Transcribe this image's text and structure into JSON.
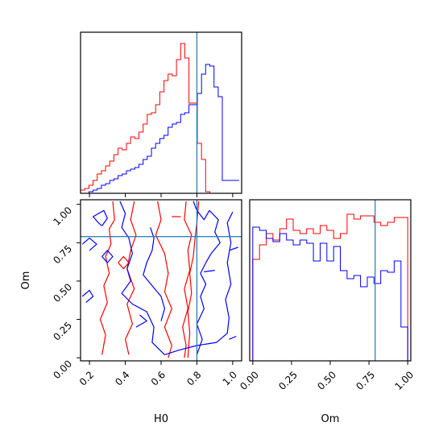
{
  "chart_data": {
    "type": "corner",
    "parameters": [
      "H0",
      "Om"
    ],
    "truth": {
      "H0": 0.8,
      "Om": 0.79
    },
    "colors": {
      "sample_a": "#ff0000",
      "sample_b": "#0000ff",
      "truth": "#1f77b4"
    },
    "panels": [
      {
        "id": "h0-histogram",
        "type": "step-histogram",
        "x_range": [
          0.15,
          1.05
        ],
        "y_range": [
          0,
          1.0
        ],
        "bins": [
          0.15,
          0.1733,
          0.1966,
          0.2199,
          0.2432,
          0.2665,
          0.2898,
          0.3131,
          0.3364,
          0.3597,
          0.383,
          0.4063,
          0.4296,
          0.4529,
          0.4762,
          0.4995,
          0.5228,
          0.5461,
          0.5694,
          0.5927,
          0.616,
          0.6393,
          0.6626,
          0.6859,
          0.7092,
          0.7325,
          0.7558,
          0.7791,
          0.8024,
          0.8257,
          0.849,
          0.8723,
          0.8956,
          0.9189,
          0.9422,
          0.9655,
          0.9888,
          1.0121,
          1.0354
        ],
        "series": [
          {
            "name": "",
            "color": "#ff0000",
            "values": [
              0.02,
              0.03,
              0.05,
              0.08,
              0.12,
              0.14,
              0.17,
              0.2,
              0.24,
              0.28,
              0.27,
              0.31,
              0.35,
              0.34,
              0.38,
              0.43,
              0.49,
              0.5,
              0.55,
              0.63,
              0.7,
              0.74,
              0.73,
              0.83,
              0.93,
              0.84,
              0.56,
              0.56,
              0.31,
              0.21,
              0.01,
              0.0,
              0.0,
              0.0,
              0.0,
              0.0,
              0.0,
              0.0
            ]
          },
          {
            "name": "",
            "color": "#0000ff",
            "values": [
              0.0,
              0.0,
              0.01,
              0.02,
              0.03,
              0.05,
              0.06,
              0.08,
              0.09,
              0.11,
              0.12,
              0.14,
              0.15,
              0.16,
              0.18,
              0.21,
              0.23,
              0.28,
              0.31,
              0.34,
              0.36,
              0.41,
              0.43,
              0.44,
              0.49,
              0.5,
              0.55,
              0.55,
              0.62,
              0.74,
              0.8,
              0.79,
              0.66,
              0.6,
              0.08,
              0.08,
              0.08,
              0.08
            ]
          }
        ],
        "xticks": [
          0.2,
          0.4,
          0.6,
          0.8,
          1.0
        ]
      },
      {
        "id": "om-histogram",
        "type": "step-histogram",
        "x_range": [
          -0.02,
          1.02
        ],
        "y_range": [
          0,
          1.0
        ],
        "bins": [
          0.0,
          0.0435,
          0.087,
          0.1304,
          0.1739,
          0.2174,
          0.2609,
          0.3043,
          0.3478,
          0.3913,
          0.4348,
          0.4783,
          0.5217,
          0.5652,
          0.6087,
          0.6522,
          0.6957,
          0.7391,
          0.7826,
          0.8261,
          0.8696,
          0.913,
          0.9565,
          1.0
        ],
        "series": [
          {
            "name": "",
            "color": "#ff0000",
            "values": [
              0.63,
              0.72,
              0.79,
              0.75,
              0.82,
              0.88,
              0.81,
              0.79,
              0.82,
              0.79,
              0.84,
              0.81,
              0.76,
              0.79,
              0.91,
              0.88,
              0.9,
              0.9,
              0.86,
              0.84,
              0.86,
              0.89,
              0.89
            ]
          },
          {
            "name": "",
            "color": "#0000ff",
            "values": [
              0.83,
              0.81,
              0.76,
              0.74,
              0.79,
              0.75,
              0.72,
              0.75,
              0.73,
              0.62,
              0.73,
              0.62,
              0.71,
              0.56,
              0.51,
              0.53,
              0.46,
              0.52,
              0.48,
              0.56,
              0.55,
              0.62,
              0.21
            ]
          }
        ],
        "xticks": [
          0.0,
          0.25,
          0.5,
          0.75,
          1.0
        ],
        "xticklabels": [
          "0.00",
          "0.25",
          "0.50",
          "0.75",
          "1.00"
        ]
      },
      {
        "id": "h0-om-contour",
        "type": "contour",
        "x_range": [
          0.15,
          1.05
        ],
        "y_range": [
          -0.02,
          1.03
        ],
        "xticks": [
          0.2,
          0.4,
          0.6,
          0.8,
          1.0
        ],
        "xticklabels": [
          "0.2",
          "0.4",
          "0.6",
          "0.8",
          "1.0"
        ],
        "yticks": [
          0.0,
          0.25,
          0.5,
          0.75,
          1.0
        ],
        "yticklabels": [
          "0.00",
          "0.25",
          "0.50",
          "0.75",
          "1.00"
        ],
        "xlabel": "H0",
        "ylabel": "Om",
        "contours": [
          {
            "color": "#ff0000",
            "points": [
              [
                0.33,
                1.02
              ],
              [
                0.34,
                0.9
              ],
              [
                0.31,
                0.84
              ],
              [
                0.32,
                0.74
              ],
              [
                0.29,
                0.66
              ],
              [
                0.31,
                0.55
              ],
              [
                0.28,
                0.47
              ],
              [
                0.3,
                0.36
              ],
              [
                0.26,
                0.25
              ],
              [
                0.29,
                0.15
              ],
              [
                0.27,
                0.02
              ]
            ]
          },
          {
            "color": "#ff0000",
            "points": [
              [
                0.45,
                1.02
              ],
              [
                0.43,
                0.9
              ],
              [
                0.46,
                0.8
              ],
              [
                0.43,
                0.7
              ],
              [
                0.41,
                0.58
              ],
              [
                0.45,
                0.45
              ],
              [
                0.41,
                0.35
              ],
              [
                0.44,
                0.22
              ],
              [
                0.4,
                0.12
              ],
              [
                0.42,
                0.02
              ]
            ]
          },
          {
            "color": "#ff0000",
            "points": [
              [
                0.58,
                1.02
              ],
              [
                0.6,
                0.9
              ],
              [
                0.57,
                0.8
              ],
              [
                0.62,
                0.68
              ],
              [
                0.64,
                0.55
              ],
              [
                0.62,
                0.43
              ],
              [
                0.66,
                0.32
              ],
              [
                0.62,
                0.2
              ],
              [
                0.66,
                0.08
              ],
              [
                0.64,
                0.0
              ]
            ]
          },
          {
            "color": "#ff0000",
            "points": [
              [
                0.74,
                1.02
              ],
              [
                0.73,
                0.9
              ],
              [
                0.77,
                0.8
              ],
              [
                0.75,
                0.7
              ],
              [
                0.76,
                0.57
              ],
              [
                0.73,
                0.45
              ],
              [
                0.75,
                0.32
              ],
              [
                0.72,
                0.2
              ],
              [
                0.74,
                0.08
              ],
              [
                0.73,
                0.0
              ]
            ]
          },
          {
            "color": "#ff0000",
            "points": [
              [
                0.81,
                1.02
              ],
              [
                0.8,
                0.88
              ],
              [
                0.79,
                0.78
              ],
              [
                0.78,
                0.66
              ],
              [
                0.76,
                0.55
              ],
              [
                0.77,
                0.42
              ],
              [
                0.75,
                0.3
              ],
              [
                0.76,
                0.16
              ],
              [
                0.75,
                0.0
              ]
            ]
          },
          {
            "color": "#ff0000",
            "points": [
              [
                0.36,
                0.62
              ],
              [
                0.39,
                0.66
              ],
              [
                0.42,
                0.62
              ],
              [
                0.39,
                0.58
              ],
              [
                0.36,
                0.62
              ]
            ]
          },
          {
            "color": "#ff0000",
            "points": [
              [
                0.66,
                0.92
              ],
              [
                0.71,
                0.92
              ]
            ]
          },
          {
            "color": "#0000ff",
            "points": [
              [
                0.37,
                1.02
              ],
              [
                0.4,
                0.94
              ],
              [
                0.38,
                0.85
              ],
              [
                0.42,
                0.78
              ],
              [
                0.44,
                0.68
              ],
              [
                0.41,
                0.58
              ],
              [
                0.43,
                0.5
              ],
              [
                0.38,
                0.42
              ],
              [
                0.44,
                0.35
              ],
              [
                0.52,
                0.3
              ],
              [
                0.56,
                0.2
              ],
              [
                0.55,
                0.1
              ],
              [
                0.62,
                0.02
              ]
            ]
          },
          {
            "color": "#0000ff",
            "points": [
              [
                0.62,
                0.02
              ],
              [
                0.7,
                0.05
              ],
              [
                0.8,
                0.08
              ],
              [
                0.91,
                0.1
              ],
              [
                0.97,
                0.16
              ],
              [
                0.98,
                0.26
              ],
              [
                0.96,
                0.38
              ],
              [
                0.99,
                0.48
              ],
              [
                0.97,
                0.62
              ],
              [
                0.99,
                0.75
              ],
              [
                0.97,
                0.88
              ],
              [
                1.0,
                0.95
              ]
            ]
          },
          {
            "color": "#0000ff",
            "points": [
              [
                0.78,
                1.02
              ],
              [
                0.8,
                0.96
              ],
              [
                0.84,
                0.9
              ],
              [
                0.87,
                0.96
              ],
              [
                0.92,
                0.9
              ],
              [
                0.9,
                0.82
              ],
              [
                0.93,
                0.75
              ],
              [
                0.88,
                0.68
              ],
              [
                0.85,
                0.62
              ],
              [
                0.82,
                0.55
              ],
              [
                0.85,
                0.48
              ],
              [
                0.82,
                0.4
              ],
              [
                0.84,
                0.32
              ],
              [
                0.8,
                0.22
              ],
              [
                0.83,
                0.12
              ],
              [
                0.8,
                0.02
              ]
            ]
          },
          {
            "color": "#0000ff",
            "points": [
              [
                0.54,
                0.85
              ],
              [
                0.56,
                0.78
              ],
              [
                0.55,
                0.7
              ],
              [
                0.52,
                0.62
              ],
              [
                0.5,
                0.54
              ],
              [
                0.55,
                0.47
              ],
              [
                0.6,
                0.4
              ],
              [
                0.62,
                0.32
              ],
              [
                0.6,
                0.24
              ]
            ]
          },
          {
            "color": "#0000ff",
            "points": [
              [
                0.27,
                0.86
              ],
              [
                0.3,
                0.91
              ],
              [
                0.28,
                0.96
              ],
              [
                0.22,
                0.92
              ],
              [
                0.25,
                0.88
              ],
              [
                0.27,
                0.86
              ]
            ]
          },
          {
            "color": "#0000ff",
            "points": [
              [
                0.3,
                0.62
              ],
              [
                0.33,
                0.66
              ],
              [
                0.3,
                0.7
              ],
              [
                0.27,
                0.66
              ],
              [
                0.3,
                0.62
              ]
            ]
          },
          {
            "color": "#0000ff",
            "points": [
              [
                0.2,
                0.7
              ],
              [
                0.24,
                0.74
              ],
              [
                0.2,
                0.78
              ],
              [
                0.16,
                0.74
              ]
            ]
          },
          {
            "color": "#0000ff",
            "points": [
              [
                0.16,
                0.4
              ],
              [
                0.2,
                0.44
              ],
              [
                0.22,
                0.4
              ],
              [
                0.18,
                0.36
              ]
            ]
          },
          {
            "color": "#0000ff",
            "points": [
              [
                0.48,
                0.28
              ],
              [
                0.52,
                0.24
              ],
              [
                0.46,
                0.2
              ]
            ]
          },
          {
            "color": "#0000ff",
            "points": [
              [
                0.84,
                0.56
              ],
              [
                0.9,
                0.57
              ]
            ]
          },
          {
            "color": "#0000ff",
            "points": [
              [
                0.98,
                0.7
              ],
              [
                1.03,
                0.72
              ]
            ]
          },
          {
            "color": "#0000ff",
            "points": [
              [
                0.98,
                0.12
              ],
              [
                1.02,
                0.14
              ]
            ]
          }
        ]
      }
    ]
  }
}
